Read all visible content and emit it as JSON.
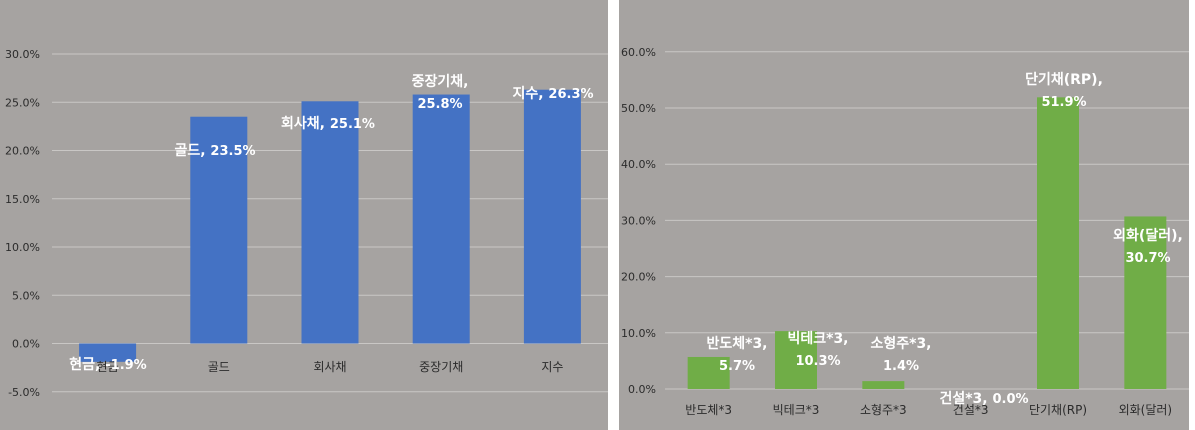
{
  "theme": {
    "panel_bg": "#a6a3a1",
    "gridline": "#c9c7c5",
    "axis_text": "#2b2b2b",
    "label_text": "#ffffff"
  },
  "chart_data": [
    {
      "type": "bar",
      "color": "#4472c4",
      "categories": [
        "현금",
        "골드",
        "회사채",
        "중장기채",
        "지수"
      ],
      "values": [
        -1.9,
        23.5,
        25.1,
        25.8,
        26.3
      ],
      "data_labels": [
        "현금, -1.9%",
        "골드, 23.5%",
        "회사채, 25.1%",
        "중장기채, 25.8%",
        "지수, 26.3%"
      ],
      "ylim": [
        -5,
        30
      ],
      "yticks": [
        "-5.0%",
        "0.0%",
        "5.0%",
        "10.0%",
        "15.0%",
        "20.0%",
        "25.0%",
        "30.0%"
      ],
      "grid": true
    },
    {
      "type": "bar",
      "color": "#70ad47",
      "categories": [
        "반도체*3",
        "빅테크*3",
        "소형주*3",
        "건설*3",
        "단기채(RP)",
        "외화(달러)"
      ],
      "values": [
        5.7,
        10.3,
        1.4,
        0.0,
        51.9,
        30.7
      ],
      "data_labels": [
        "반도체*3, 5.7%",
        "빅테크*3, 10.3%",
        "소형주*3, 1.4%",
        "건설*3, 0.0%",
        "단기채(RP), 51.9%",
        "외화(달러), 30.7%"
      ],
      "ylim": [
        0,
        60
      ],
      "yticks": [
        "0.0%",
        "10.0%",
        "20.0%",
        "30.0%",
        "40.0%",
        "50.0%",
        "60.0%"
      ],
      "grid": true
    }
  ]
}
